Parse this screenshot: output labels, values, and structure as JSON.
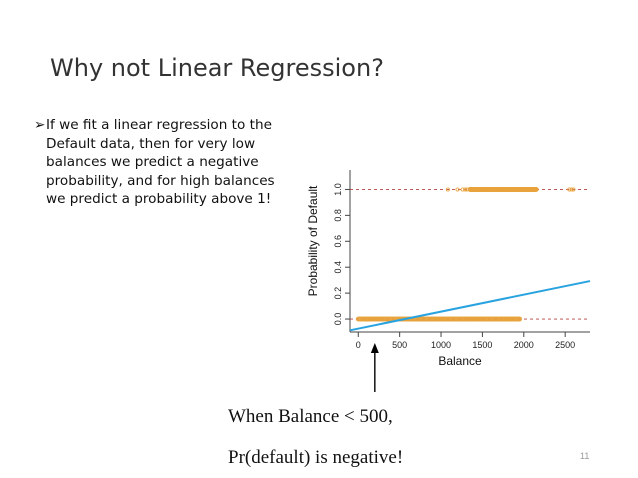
{
  "slide": {
    "title": "Why not Linear Regression?",
    "bullet_marker": "➢",
    "bullet_lines": [
      "If we fit a linear regression to the",
      "Default data, then for very low",
      "balances we predict a negative",
      "probability, and for high balances",
      "we predict a probability above 1!"
    ],
    "caption_line1": "When Balance < 500,",
    "caption_line2": "Pr(default) is negative!",
    "footer_text": "",
    "page_number": "11"
  },
  "chart_data": {
    "type": "scatter",
    "xlabel": "Balance",
    "ylabel": "Probability of Default",
    "xlim": [
      -100,
      2800
    ],
    "ylim": [
      -0.1,
      1.15
    ],
    "x_ticks": [
      0,
      500,
      1000,
      1500,
      2000,
      2500
    ],
    "y_ticks": [
      0.0,
      0.2,
      0.4,
      0.6,
      0.8,
      1.0
    ],
    "reference_lines": [
      0,
      1
    ],
    "series": [
      {
        "kind": "points",
        "y": 0,
        "color": "#e8a33c",
        "x_range": [
          0,
          2200
        ],
        "dense_range": [
          0,
          1950
        ]
      },
      {
        "kind": "points",
        "y": 1,
        "color": "#e8a33c",
        "x_range": [
          1000,
          2650
        ],
        "dense_range": [
          1350,
          2150
        ]
      },
      {
        "kind": "line",
        "color": "#29a3e0",
        "x": [
          -100,
          2800
        ],
        "y": [
          -0.087,
          0.293
        ]
      }
    ],
    "annotation": {
      "type": "arrow",
      "points_to_x": 200,
      "color": "#000000"
    }
  }
}
